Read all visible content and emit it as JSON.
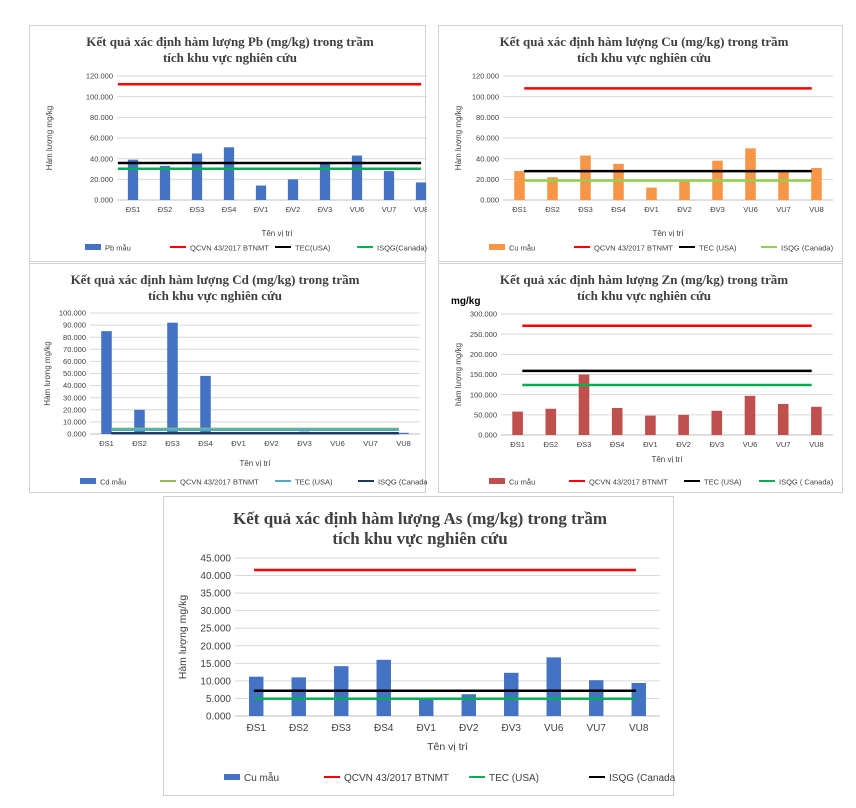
{
  "chart_data": [
    {
      "id": "pb",
      "type": "bar",
      "title_lines": [
        "Kết quả xác định hàm lượng Pb (mg/kg) trong trầm",
        "tích khu vực nghiên cứu"
      ],
      "xlabel": "Tên vị trí",
      "ylabel": "Hàm lượng mg/kg",
      "categories": [
        "ĐS1",
        "ĐS2",
        "ĐS3",
        "ĐS4",
        "ĐV1",
        "ĐV2",
        "ĐV3",
        "VU6",
        "VU7",
        "VU8"
      ],
      "ylim": [
        0,
        120
      ],
      "yticks": [
        0,
        20,
        40,
        60,
        80,
        100,
        120
      ],
      "ytick_labels": [
        "0.000",
        "20.000",
        "40.000",
        "60.000",
        "80.000",
        "100.000",
        "120.000"
      ],
      "grid": true,
      "bar_series": {
        "name": "Pb mẫu",
        "color": "#4472c4",
        "values": [
          39,
          33,
          45,
          51,
          14,
          20,
          36,
          43,
          28,
          17
        ]
      },
      "lines": [
        {
          "name": "QCVN 43/2017 BTNMT",
          "color": "#ff0000",
          "value": 112
        },
        {
          "name": "TEC(USA)",
          "color": "#000000",
          "value": 35.8
        },
        {
          "name": "ISQG(Canada)",
          "color": "#00b050",
          "value": 30.2
        }
      ],
      "legend_order": [
        "Pb mẫu",
        "QCVN 43/2017 BTNMT",
        "TEC(USA)",
        "ISQG(Canada)"
      ]
    },
    {
      "id": "cu",
      "type": "bar",
      "title_lines": [
        "Kết quả xác định hàm lượng Cu (mg/kg) trong trầm",
        "tích khu vực nghiên cứu"
      ],
      "xlabel": "Tên vị trí",
      "ylabel": "Hàm lượng mg/kg",
      "categories": [
        "ĐS1",
        "ĐS2",
        "ĐS3",
        "ĐS4",
        "ĐV1",
        "ĐV2",
        "ĐV3",
        "VU6",
        "VU7",
        "VU8"
      ],
      "ylim": [
        0,
        120
      ],
      "yticks": [
        0,
        20,
        40,
        60,
        80,
        100,
        120
      ],
      "ytick_labels": [
        "0.000",
        "20.000",
        "40.000",
        "60.000",
        "80.000",
        "100.000",
        "120.000"
      ],
      "grid": true,
      "bar_series": {
        "name": "Cu mẫu",
        "color": "#f79646",
        "values": [
          28,
          22,
          43,
          35,
          12,
          18,
          38,
          50,
          27,
          31
        ]
      },
      "lines": [
        {
          "name": "QCVN 43/2017 BTNMT",
          "color": "#ff0000",
          "value": 108
        },
        {
          "name": "TEC (USA)",
          "color": "#000000",
          "value": 28
        },
        {
          "name": "ISQG (Canada)",
          "color": "#92d050",
          "value": 18.7
        }
      ],
      "legend_order": [
        "Cu mẫu",
        "QCVN 43/2017 BTNMT",
        "TEC (USA)",
        "ISQG (Canada)"
      ]
    },
    {
      "id": "cd",
      "type": "bar",
      "title_lines": [
        "Kết quả xác định hàm lượng Cd (mg/kg) trong trầm",
        "tích khu vực nghiên cứu"
      ],
      "xlabel": "Tên vị trí",
      "ylabel": "Hàm lượng mg/kg",
      "categories": [
        "ĐS1",
        "ĐS2",
        "ĐS3",
        "ĐS4",
        "ĐV1",
        "ĐV2",
        "ĐV3",
        "VU6",
        "VU7",
        "VU8"
      ],
      "ylim": [
        0,
        100
      ],
      "yticks": [
        0,
        10,
        20,
        30,
        40,
        50,
        60,
        70,
        80,
        90,
        100
      ],
      "ytick_labels": [
        "0.000",
        "10.000",
        "20.000",
        "30.000",
        "40.000",
        "50.000",
        "60.000",
        "70.000",
        "80.000",
        "90.000",
        "100.000"
      ],
      "grid": true,
      "bar_series": {
        "name": "Cd mẫu",
        "color": "#4472c4",
        "values": [
          85,
          20,
          92,
          48,
          0.5,
          0.5,
          2,
          1,
          1,
          1
        ]
      },
      "lines": [
        {
          "name": "QCVN 43/2017 BTNMT",
          "color": "#9bbb59",
          "value": 4.2
        },
        {
          "name": "TEC (USA)",
          "color": "#4bacc6",
          "value": 3.5
        },
        {
          "name": "ISQG (Canada)",
          "color": "#1f3864",
          "value": 0.6
        }
      ],
      "legend_order": [
        "Cd mẫu",
        "QCVN 43/2017 BTNMT",
        "TEC (USA)",
        "ISQG (Canada)"
      ]
    },
    {
      "id": "zn",
      "type": "bar",
      "title_lines": [
        "Kết quả xác định hàm lượng Zn (mg/kg) trong trầm",
        "tích khu vực nghiên cứu"
      ],
      "unit_label": "mg/kg",
      "xlabel": "Tên vị trí",
      "ylabel": "hàm lượng mg/kg",
      "categories": [
        "ĐS1",
        "ĐS2",
        "ĐS3",
        "ĐS4",
        "ĐV1",
        "ĐV2",
        "ĐV3",
        "VU6",
        "VU7",
        "VU8"
      ],
      "ylim": [
        0,
        300
      ],
      "yticks": [
        0,
        50,
        100,
        150,
        200,
        250,
        300
      ],
      "ytick_labels": [
        "0.000",
        "50.000",
        "100.000",
        "150.000",
        "200.000",
        "250.000",
        "300.000"
      ],
      "grid": true,
      "bar_series": {
        "name": "Cu mẫu",
        "color": "#c0504d",
        "values": [
          58,
          65,
          150,
          67,
          48,
          50,
          60,
          97,
          77,
          70
        ]
      },
      "lines": [
        {
          "name": "QCVN 43/2017 BTNMT",
          "color": "#ff0000",
          "value": 271
        },
        {
          "name": "TEC (USA)",
          "color": "#000000",
          "value": 159
        },
        {
          "name": "ISQG ( Canada)",
          "color": "#00b050",
          "value": 124
        }
      ],
      "legend_order": [
        "Cu mẫu",
        "QCVN 43/2017 BTNMT",
        "TEC (USA)",
        "ISQG ( Canada)"
      ]
    },
    {
      "id": "as",
      "type": "bar",
      "title_lines": [
        "Kết quả xác định hàm lượng As (mg/kg) trong trầm",
        "tích khu vực nghiên cứu"
      ],
      "xlabel": "Tên vị trí",
      "ylabel": "Hàm lượng mg/kg",
      "categories": [
        "ĐS1",
        "ĐS2",
        "ĐS3",
        "ĐS4",
        "ĐV1",
        "ĐV2",
        "ĐV3",
        "VU6",
        "VU7",
        "VU8"
      ],
      "ylim": [
        0,
        45
      ],
      "yticks": [
        0,
        5,
        10,
        15,
        20,
        25,
        30,
        35,
        40,
        45
      ],
      "ytick_labels": [
        "0.000",
        "5.000",
        "10.000",
        "15.000",
        "20.000",
        "25.000",
        "30.000",
        "35.000",
        "40.000",
        "45.000"
      ],
      "grid": true,
      "bar_series": {
        "name": "Cu mẫu",
        "color": "#4472c4",
        "values": [
          11.2,
          11,
          14.2,
          16,
          4.9,
          6.2,
          12.3,
          16.7,
          10.2,
          9.4
        ]
      },
      "lines": [
        {
          "name": "QCVN 43/2017 BTNMT",
          "color": "#ff0000",
          "value": 41.6
        },
        {
          "name": "TEC (USA)",
          "color": "#00b050",
          "value": 4.9
        },
        {
          "name": "ISQG (Canada)",
          "color": "#000000",
          "value": 7.2
        }
      ],
      "legend_order": [
        "Cu mẫu",
        "QCVN 43/2017 BTNMT",
        "TEC (USA)",
        "ISQG (Canada)"
      ]
    }
  ]
}
